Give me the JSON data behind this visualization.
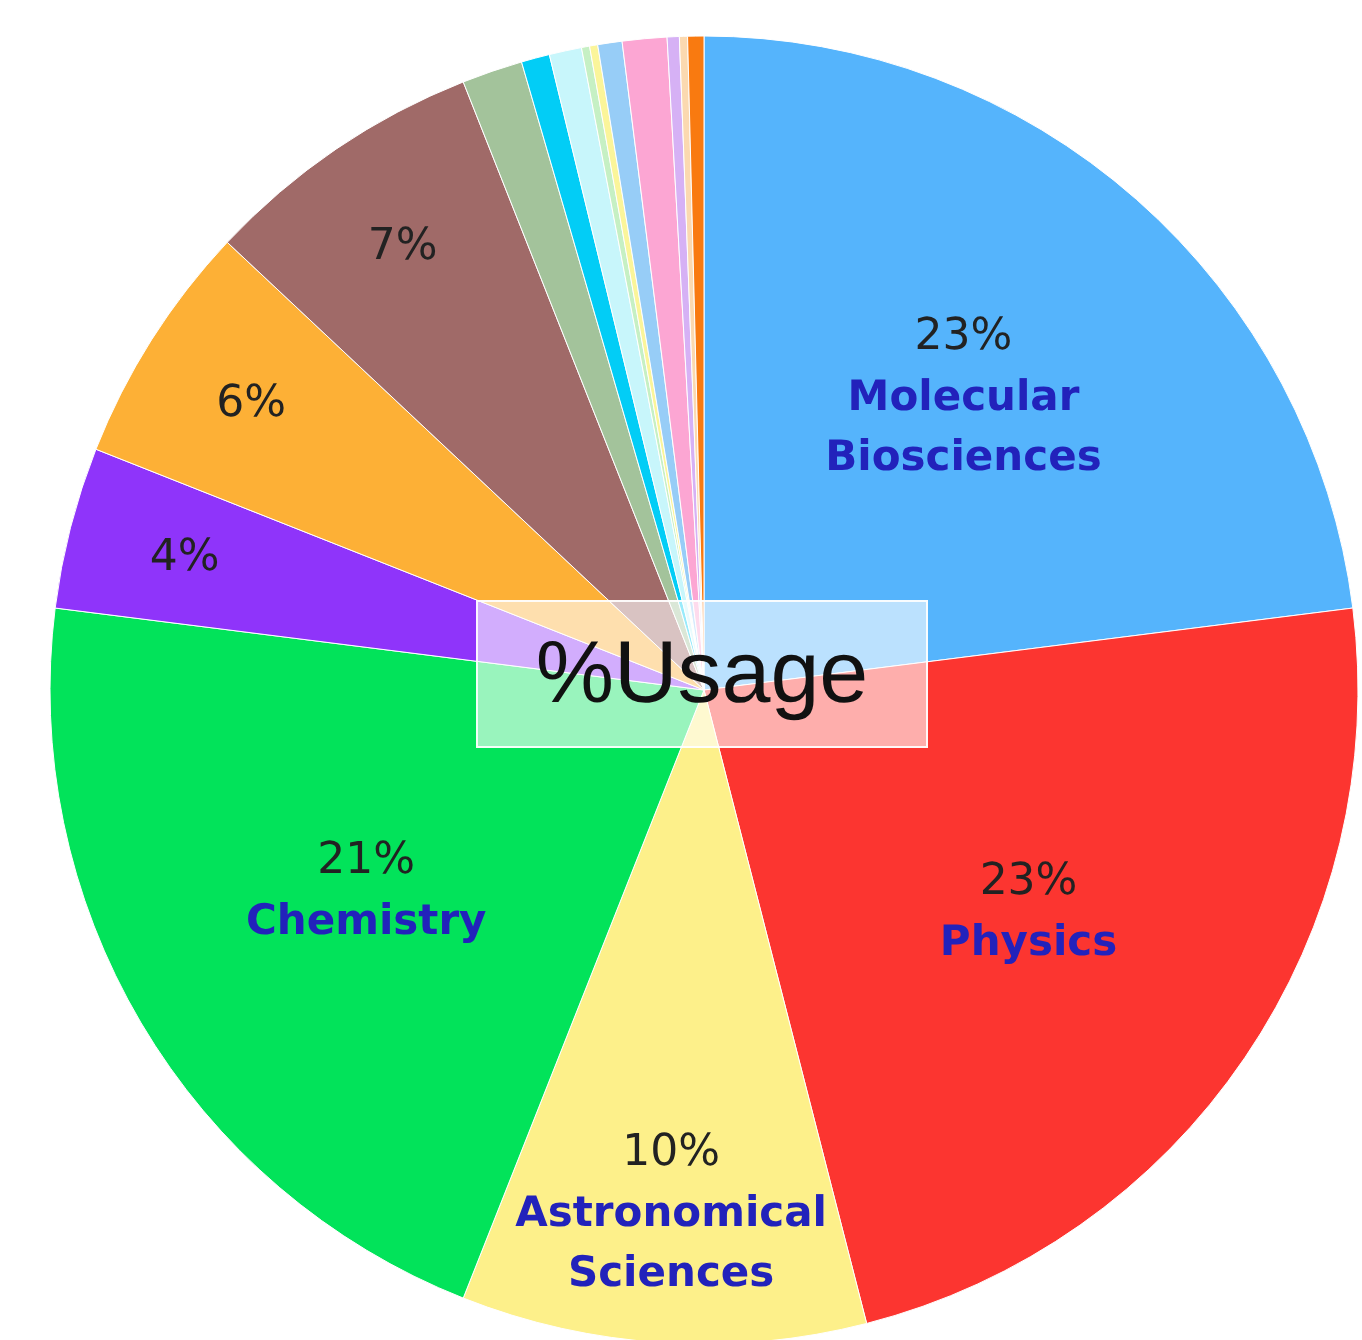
{
  "chart_data": {
    "type": "pie",
    "title": "%Usage",
    "categories": [
      "Molecular Biosciences",
      "Physics",
      "Astronomical Sciences",
      "Chemistry",
      null,
      null,
      null,
      null,
      null,
      null,
      null,
      null,
      null,
      null,
      null,
      null,
      null
    ],
    "values": [
      23,
      23,
      10,
      21,
      4,
      6,
      7,
      1.5,
      0.7,
      0.8,
      0.2,
      0.2,
      0.6,
      1.1,
      0.3,
      0.2,
      0.4
    ],
    "value_labels": [
      "23%",
      "23%",
      "10%",
      "21%",
      "4%",
      "6%",
      "7%",
      null,
      null,
      null,
      null,
      null,
      null,
      null,
      null,
      null,
      null
    ],
    "colors": [
      "#55b4fc",
      "#fc3530",
      "#fdf08a",
      "#02e35a",
      "#8f34fa",
      "#fdb036",
      "#a06a68",
      "#a3c39b",
      "#02cdf6",
      "#c8f6fb",
      "#c6f0c4",
      "#fbf59a",
      "#97cdf7",
      "#fca6d3",
      "#d6b1f5",
      "#fbd9b0",
      "#f97a10"
    ]
  }
}
